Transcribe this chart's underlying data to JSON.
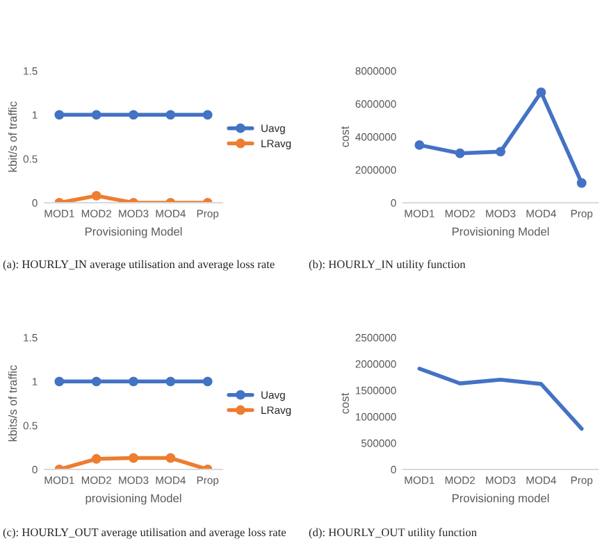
{
  "chart_data": [
    {
      "type": "line",
      "categories": [
        "MOD1",
        "MOD2",
        "MOD3",
        "MOD4",
        "Prop"
      ],
      "xlabel": "Provisioning Model",
      "ylabel": "kbit/s of traffic",
      "ylim": [
        0,
        1.5
      ],
      "yticks": [
        0,
        0.5,
        1,
        1.5
      ],
      "marker": "circle",
      "legend": "right",
      "annotations": [
        "(a): HOURLY_IN average utilisation and average loss rate"
      ],
      "series": [
        {
          "name": "Uavg",
          "color": "#4472c4",
          "values": [
            1,
            1,
            1,
            1,
            1
          ]
        },
        {
          "name": "LRavg",
          "color": "#ed7d31",
          "values": [
            0,
            0.08,
            0,
            0,
            0
          ]
        }
      ]
    },
    {
      "type": "line",
      "categories": [
        "MOD1",
        "MOD2",
        "MOD3",
        "MOD4",
        "Prop"
      ],
      "xlabel": "Provisioning Model",
      "ylabel": "cost",
      "ylim": [
        0,
        8000000
      ],
      "yticks": [
        0,
        2000000,
        4000000,
        6000000,
        8000000
      ],
      "marker": "circle",
      "annotations": [
        "(b): HOURLY_IN utility function"
      ],
      "series": [
        {
          "color": "#4472c4",
          "values": [
            3500000,
            3000000,
            3100000,
            6700000,
            1200000
          ]
        }
      ]
    },
    {
      "type": "line",
      "categories": [
        "MOD1",
        "MOD2",
        "MOD3",
        "MOD4",
        "Prop"
      ],
      "xlabel": "provisioning Model",
      "ylabel": "kbits/s of traffic",
      "ylim": [
        0,
        1.5
      ],
      "yticks": [
        0,
        0.5,
        1,
        1.5
      ],
      "marker": "circle",
      "legend": "right",
      "annotations": [
        "(c): HOURLY_OUT average utilisation and average loss rate"
      ],
      "series": [
        {
          "name": "Uavg",
          "color": "#4472c4",
          "values": [
            1,
            1,
            1,
            1,
            1
          ]
        },
        {
          "name": "LRavg",
          "color": "#ed7d31",
          "values": [
            0,
            0.12,
            0.13,
            0.13,
            0
          ]
        }
      ]
    },
    {
      "type": "line",
      "categories": [
        "MOD1",
        "MOD2",
        "MOD3",
        "MOD4",
        "Prop"
      ],
      "xlabel": "Provisioning model",
      "ylabel": "cost",
      "ylim": [
        0,
        2500000
      ],
      "yticks": [
        0,
        500000,
        1000000,
        1500000,
        2000000,
        2500000
      ],
      "annotations": [
        "(d): HOURLY_OUT utility function"
      ],
      "series": [
        {
          "color": "#4472c4",
          "values": [
            1910000,
            1630000,
            1700000,
            1620000,
            770000
          ]
        }
      ]
    }
  ]
}
